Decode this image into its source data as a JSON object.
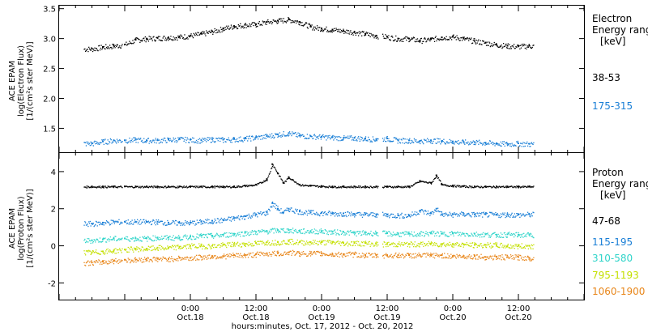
{
  "chart_data": [
    {
      "type": "scatter",
      "ylabel": [
        "ACE EPAM",
        "log(Electron Flux)",
        "[1/(cm²s ster MeV)]"
      ],
      "ylim": [
        1.1,
        3.55
      ],
      "yticks": [
        "1.5",
        "2.0",
        "2.5",
        "3.0",
        "3.5"
      ],
      "side_title": [
        "Electron",
        "Energy range",
        "[keV]"
      ],
      "series": [
        {
          "name": "38-53",
          "color": "#000000",
          "x": [
            -18,
            -16,
            -14,
            -12,
            -10,
            -8,
            -6,
            -4,
            -2,
            0,
            2,
            4,
            6,
            8,
            10,
            12,
            14,
            16,
            18,
            20,
            22,
            24,
            26,
            28,
            30,
            32,
            34,
            36,
            38,
            40,
            42,
            44,
            46,
            48,
            50,
            52,
            54,
            56,
            58,
            60,
            62
          ],
          "y": [
            2.83,
            2.86,
            2.88,
            2.9,
            2.98,
            3.0,
            3.01,
            3.02,
            3.03,
            3.05,
            3.08,
            3.12,
            3.17,
            3.21,
            3.23,
            3.24,
            3.28,
            3.3,
            3.32,
            3.28,
            3.2,
            3.17,
            3.15,
            3.13,
            3.11,
            3.08,
            3.05,
            3.03,
            3.0,
            3.0,
            2.97,
            2.99,
            3.02,
            3.03,
            3.0,
            2.96,
            2.93,
            2.9,
            2.88,
            2.87,
            2.88
          ]
        },
        {
          "name": "175-315",
          "color": "#1a7fd6",
          "x": [
            -18,
            -16,
            -14,
            -12,
            -10,
            -8,
            -6,
            -4,
            -2,
            0,
            2,
            4,
            6,
            8,
            10,
            12,
            14,
            16,
            18,
            20,
            22,
            24,
            26,
            28,
            30,
            32,
            34,
            36,
            38,
            40,
            42,
            44,
            46,
            48,
            50,
            52,
            54,
            56,
            58,
            60,
            62
          ],
          "y": [
            1.25,
            1.28,
            1.3,
            1.3,
            1.31,
            1.3,
            1.3,
            1.31,
            1.32,
            1.31,
            1.3,
            1.32,
            1.31,
            1.32,
            1.33,
            1.35,
            1.37,
            1.4,
            1.42,
            1.38,
            1.37,
            1.36,
            1.35,
            1.34,
            1.34,
            1.33,
            1.32,
            1.33,
            1.3,
            1.3,
            1.29,
            1.3,
            1.29,
            1.28,
            1.27,
            1.27,
            1.26,
            1.25,
            1.24,
            1.25,
            1.24
          ]
        }
      ]
    },
    {
      "type": "scatter",
      "ylabel": [
        "ACE EPAM",
        "log(Proton Flux)",
        "[1/(cm²s ster MeV)]"
      ],
      "ylim": [
        -2.9,
        5.0
      ],
      "yticks": [
        "-2",
        "0",
        "2",
        "4"
      ],
      "side_title": [
        "Proton",
        "Energy range",
        "[keV]"
      ],
      "series": [
        {
          "name": "47-68",
          "color": "#000000",
          "x": [
            -18,
            -16,
            -14,
            -12,
            -10,
            -8,
            -6,
            -4,
            -2,
            0,
            2,
            4,
            6,
            8,
            10,
            12,
            14,
            15,
            16,
            17,
            18,
            20,
            22,
            24,
            26,
            28,
            30,
            32,
            34,
            36,
            38,
            40,
            42,
            44,
            45,
            46,
            48,
            50,
            52,
            54,
            56,
            58,
            60,
            62
          ],
          "y": [
            3.2,
            3.2,
            3.2,
            3.2,
            3.2,
            3.2,
            3.2,
            3.2,
            3.2,
            3.2,
            3.2,
            3.2,
            3.2,
            3.2,
            3.25,
            3.3,
            3.6,
            4.4,
            3.9,
            3.4,
            3.7,
            3.3,
            3.25,
            3.22,
            3.2,
            3.2,
            3.2,
            3.2,
            3.2,
            3.2,
            3.2,
            3.2,
            3.5,
            3.4,
            3.8,
            3.3,
            3.25,
            3.22,
            3.2,
            3.2,
            3.2,
            3.2,
            3.2,
            3.2
          ]
        },
        {
          "name": "115-195",
          "color": "#1a7fd6",
          "x": [
            -18,
            -16,
            -14,
            -12,
            -10,
            -8,
            -6,
            -4,
            -2,
            0,
            2,
            4,
            6,
            8,
            10,
            12,
            14,
            15,
            16,
            17,
            18,
            20,
            22,
            24,
            26,
            28,
            30,
            32,
            34,
            36,
            38,
            40,
            42,
            44,
            45,
            46,
            48,
            50,
            52,
            54,
            56,
            58,
            60,
            62
          ],
          "y": [
            1.2,
            1.25,
            1.3,
            1.3,
            1.3,
            1.3,
            1.3,
            1.25,
            1.25,
            1.25,
            1.3,
            1.35,
            1.4,
            1.5,
            1.6,
            1.7,
            1.8,
            2.3,
            2.0,
            1.8,
            2.0,
            1.85,
            1.8,
            1.78,
            1.75,
            1.75,
            1.72,
            1.7,
            1.7,
            1.68,
            1.65,
            1.65,
            1.9,
            1.75,
            2.0,
            1.7,
            1.7,
            1.72,
            1.7,
            1.7,
            1.68,
            1.7,
            1.68,
            1.7
          ]
        },
        {
          "name": "310-580",
          "color": "#2fd4c9",
          "x": [
            -18,
            -16,
            -14,
            -12,
            -10,
            -8,
            -6,
            -4,
            -2,
            0,
            2,
            4,
            6,
            8,
            10,
            12,
            14,
            16,
            18,
            20,
            22,
            24,
            26,
            28,
            30,
            32,
            34,
            36,
            38,
            40,
            42,
            44,
            46,
            48,
            50,
            52,
            54,
            56,
            58,
            60,
            62
          ],
          "y": [
            0.3,
            0.35,
            0.4,
            0.4,
            0.4,
            0.4,
            0.45,
            0.45,
            0.45,
            0.5,
            0.55,
            0.55,
            0.6,
            0.65,
            0.7,
            0.75,
            0.8,
            0.85,
            0.85,
            0.8,
            0.8,
            0.8,
            0.75,
            0.75,
            0.7,
            0.7,
            0.7,
            0.68,
            0.65,
            0.65,
            0.65,
            0.7,
            0.65,
            0.68,
            0.65,
            0.65,
            0.62,
            0.6,
            0.62,
            0.6,
            0.6
          ]
        },
        {
          "name": "795-1193",
          "color": "#c4e000",
          "x": [
            -18,
            -16,
            -14,
            -12,
            -10,
            -8,
            -6,
            -4,
            -2,
            0,
            2,
            4,
            6,
            8,
            10,
            12,
            14,
            16,
            18,
            20,
            22,
            24,
            26,
            28,
            30,
            32,
            34,
            36,
            38,
            40,
            42,
            44,
            46,
            48,
            50,
            52,
            54,
            56,
            58,
            60,
            62
          ],
          "y": [
            -0.35,
            -0.3,
            -0.25,
            -0.2,
            -0.15,
            -0.15,
            -0.1,
            -0.1,
            -0.05,
            0.0,
            0.0,
            0.0,
            0.05,
            0.1,
            0.1,
            0.15,
            0.2,
            0.2,
            0.25,
            0.2,
            0.2,
            0.2,
            0.2,
            0.15,
            0.15,
            0.15,
            0.1,
            0.1,
            0.1,
            0.1,
            0.1,
            0.12,
            0.1,
            0.1,
            0.08,
            0.05,
            0.05,
            0.05,
            0.0,
            0.0,
            0.0
          ]
        },
        {
          "name": "1060-1900",
          "color": "#e8861a",
          "x": [
            -18,
            -16,
            -14,
            -12,
            -10,
            -8,
            -6,
            -4,
            -2,
            0,
            2,
            4,
            6,
            8,
            10,
            12,
            14,
            16,
            18,
            20,
            22,
            24,
            26,
            28,
            30,
            32,
            34,
            36,
            38,
            40,
            42,
            44,
            46,
            48,
            50,
            52,
            54,
            56,
            58,
            60,
            62
          ],
          "y": [
            -0.9,
            -0.85,
            -0.8,
            -0.75,
            -0.75,
            -0.7,
            -0.7,
            -0.7,
            -0.65,
            -0.65,
            -0.6,
            -0.55,
            -0.55,
            -0.5,
            -0.5,
            -0.45,
            -0.4,
            -0.4,
            -0.35,
            -0.4,
            -0.4,
            -0.4,
            -0.45,
            -0.45,
            -0.45,
            -0.5,
            -0.5,
            -0.5,
            -0.5,
            -0.5,
            -0.5,
            -0.5,
            -0.5,
            -0.55,
            -0.55,
            -0.55,
            -0.6,
            -0.6,
            -0.6,
            -0.6,
            -0.65
          ]
        }
      ]
    }
  ],
  "x_axis": {
    "xlim": [
      -24,
      72
    ],
    "xlabel": "hours:minutes, Oct. 17, 2012 - Oct. 20, 2012",
    "ticks": [
      {
        "x": 0,
        "time": "0:00",
        "date": "Oct.18"
      },
      {
        "x": 12,
        "time": "12:00",
        "date": "Oct.18"
      },
      {
        "x": 24,
        "time": "0:00",
        "date": "Oct.19"
      },
      {
        "x": 36,
        "time": "12:00",
        "date": "Oct.19"
      },
      {
        "x": 48,
        "time": "0:00",
        "date": "Oct.20"
      },
      {
        "x": 60,
        "time": "12:00",
        "date": "Oct.20"
      }
    ],
    "data_gaps": [
      [
        -12.5,
        -12.0
      ],
      [
        34.3,
        35.0
      ]
    ],
    "data_end": 62.8,
    "data_start": -19.5
  }
}
